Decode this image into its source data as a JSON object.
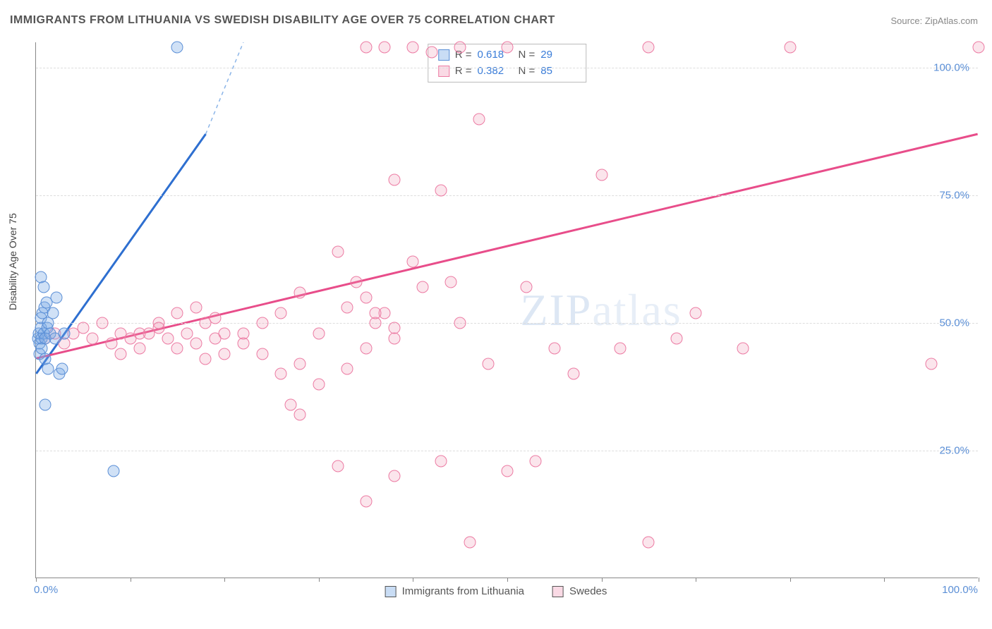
{
  "title": "IMMIGRANTS FROM LITHUANIA VS SWEDISH DISABILITY AGE OVER 75 CORRELATION CHART",
  "source": "Source: ZipAtlas.com",
  "y_axis_label": "Disability Age Over 75",
  "watermark": "ZIPatlas",
  "chart": {
    "type": "scatter",
    "xlim": [
      0,
      100
    ],
    "ylim": [
      0,
      105
    ],
    "y_ticks": [
      25,
      50,
      75,
      100
    ],
    "y_tick_labels": [
      "25.0%",
      "50.0%",
      "75.0%",
      "100.0%"
    ],
    "x_ticks": [
      0,
      10,
      20,
      30,
      40,
      50,
      60,
      70,
      80,
      90,
      100
    ],
    "x_min_label": "0.0%",
    "x_max_label": "100.0%",
    "background_color": "#ffffff",
    "grid_color": "#dddddd",
    "axis_color": "#888888",
    "tick_label_color": "#5b8fd6",
    "marker_size": 17
  },
  "series": {
    "blue": {
      "label": "Immigrants from Lithuania",
      "color": "#5b8fd6",
      "fill": "rgba(120,170,230,0.35)",
      "R": "0.618",
      "N": "29",
      "trend": {
        "x1": 0,
        "y1": 40,
        "x2": 18,
        "y2": 87,
        "dash_to_x": 22,
        "dash_to_y": 105
      },
      "points": [
        [
          0.2,
          47
        ],
        [
          0.3,
          48
        ],
        [
          0.4,
          46
        ],
        [
          0.5,
          49
        ],
        [
          0.6,
          47
        ],
        [
          0.8,
          48
        ],
        [
          1.0,
          47
        ],
        [
          1.2,
          49
        ],
        [
          0.5,
          51
        ],
        [
          0.7,
          52
        ],
        [
          0.9,
          53
        ],
        [
          1.1,
          54
        ],
        [
          1.3,
          50
        ],
        [
          1.5,
          48
        ],
        [
          0.4,
          44
        ],
        [
          0.6,
          45
        ],
        [
          2.0,
          47
        ],
        [
          3.0,
          48
        ],
        [
          1.8,
          52
        ],
        [
          2.2,
          55
        ],
        [
          0.5,
          59
        ],
        [
          0.8,
          57
        ],
        [
          1.0,
          43
        ],
        [
          1.3,
          41
        ],
        [
          2.5,
          40
        ],
        [
          2.8,
          41
        ],
        [
          1.0,
          34
        ],
        [
          8.2,
          21
        ],
        [
          15.0,
          104
        ]
      ]
    },
    "pink": {
      "label": "Swedes",
      "color": "#ec7ba3",
      "fill": "rgba(240,150,180,0.25)",
      "R": "0.382",
      "N": "85",
      "trend": {
        "x1": 0,
        "y1": 43,
        "x2": 100,
        "y2": 87
      },
      "points": [
        [
          1,
          47
        ],
        [
          2,
          48
        ],
        [
          3,
          46
        ],
        [
          4,
          48
        ],
        [
          5,
          49
        ],
        [
          6,
          47
        ],
        [
          7,
          50
        ],
        [
          8,
          46
        ],
        [
          9,
          48
        ],
        [
          10,
          47
        ],
        [
          11,
          45
        ],
        [
          12,
          48
        ],
        [
          13,
          50
        ],
        [
          14,
          47
        ],
        [
          15,
          45
        ],
        [
          16,
          48
        ],
        [
          17,
          46
        ],
        [
          18,
          50
        ],
        [
          19,
          47
        ],
        [
          20,
          48
        ],
        [
          15,
          52
        ],
        [
          17,
          53
        ],
        [
          19,
          51
        ],
        [
          22,
          48
        ],
        [
          24,
          44
        ],
        [
          26,
          40
        ],
        [
          28,
          42
        ],
        [
          24,
          50
        ],
        [
          26,
          52
        ],
        [
          28,
          56
        ],
        [
          30,
          48
        ],
        [
          32,
          64
        ],
        [
          33,
          53
        ],
        [
          34,
          58
        ],
        [
          35,
          55
        ],
        [
          36,
          50
        ],
        [
          37,
          52
        ],
        [
          38,
          47
        ],
        [
          30,
          38
        ],
        [
          33,
          41
        ],
        [
          35,
          45
        ],
        [
          27,
          34
        ],
        [
          28,
          32
        ],
        [
          32,
          22
        ],
        [
          35,
          15
        ],
        [
          38,
          20
        ],
        [
          41,
          57
        ],
        [
          43,
          76
        ],
        [
          40,
          104
        ],
        [
          42,
          103
        ],
        [
          36,
          52
        ],
        [
          38,
          49
        ],
        [
          43,
          23
        ],
        [
          44,
          58
        ],
        [
          45,
          50
        ],
        [
          46,
          7
        ],
        [
          48,
          42
        ],
        [
          50,
          21
        ],
        [
          53,
          23
        ],
        [
          50,
          104
        ],
        [
          52,
          57
        ],
        [
          45,
          104
        ],
        [
          47,
          90
        ],
        [
          55,
          45
        ],
        [
          57,
          40
        ],
        [
          60,
          79
        ],
        [
          62,
          45
        ],
        [
          65,
          7
        ],
        [
          65,
          104
        ],
        [
          68,
          47
        ],
        [
          70,
          52
        ],
        [
          75,
          45
        ],
        [
          80,
          104
        ],
        [
          95,
          42
        ],
        [
          100,
          104
        ],
        [
          38,
          78
        ],
        [
          40,
          62
        ],
        [
          35,
          104
        ],
        [
          37,
          104
        ],
        [
          22,
          46
        ],
        [
          20,
          44
        ],
        [
          18,
          43
        ],
        [
          11,
          48
        ],
        [
          13,
          49
        ],
        [
          9,
          44
        ]
      ]
    }
  },
  "legend_top": {
    "R_label": "R =",
    "N_label": "N ="
  }
}
